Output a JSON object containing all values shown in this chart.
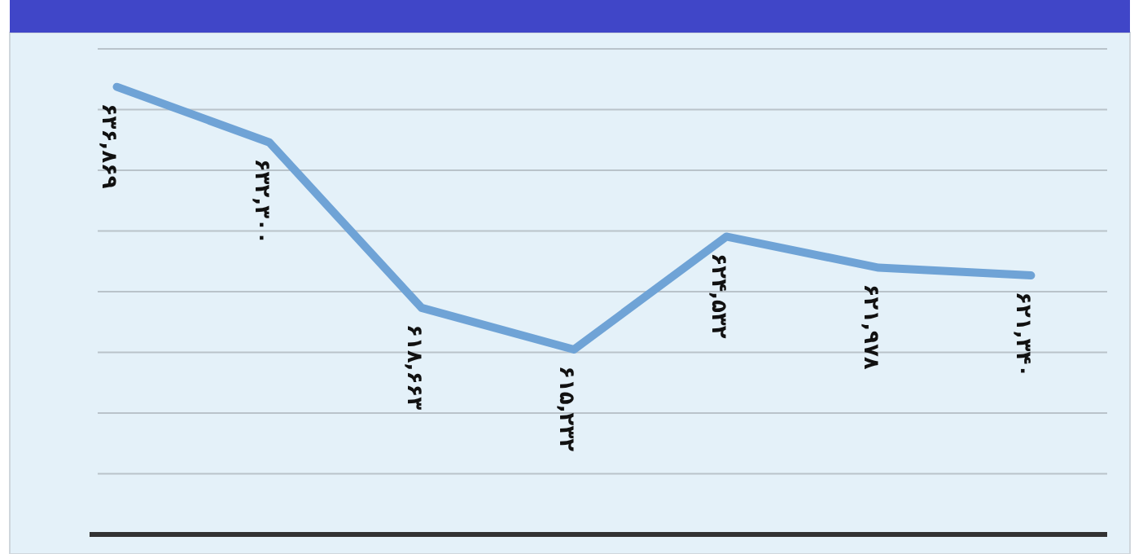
{
  "chart_data": {
    "type": "line",
    "categories": [
      null,
      null,
      null,
      null,
      null,
      null,
      null
    ],
    "series": [
      {
        "color": "#6fa3d6",
        "values": [
          636869,
          632300,
          618663,
          615232,
          624532,
          621978,
          621340
        ],
        "value_labels": [
          "۶۳۶,۸۶۹",
          "۶۳۲,۳۰۰",
          "۶۱۸,۶۶۳",
          "۶۱۵,۲۳۲",
          "۶۲۴,۵۳۲",
          "۶۲۱,۹۷۸",
          "۶۲۱,۳۴۰"
        ]
      }
    ],
    "ylim": [
      600000,
      640000
    ],
    "yticks": [
      {
        "value": 600000,
        "label": null
      },
      {
        "value": 605000,
        "label": null
      },
      {
        "value": 610000,
        "label": null
      },
      {
        "value": 615000,
        "label": null
      },
      {
        "value": 620000,
        "label": null
      },
      {
        "value": 625000,
        "label": null
      },
      {
        "value": 630000,
        "label": null
      },
      {
        "value": 635000,
        "label": null
      },
      {
        "value": 640000,
        "label": null
      }
    ],
    "grid": "y",
    "marker": "none",
    "line_style": "solid"
  }
}
